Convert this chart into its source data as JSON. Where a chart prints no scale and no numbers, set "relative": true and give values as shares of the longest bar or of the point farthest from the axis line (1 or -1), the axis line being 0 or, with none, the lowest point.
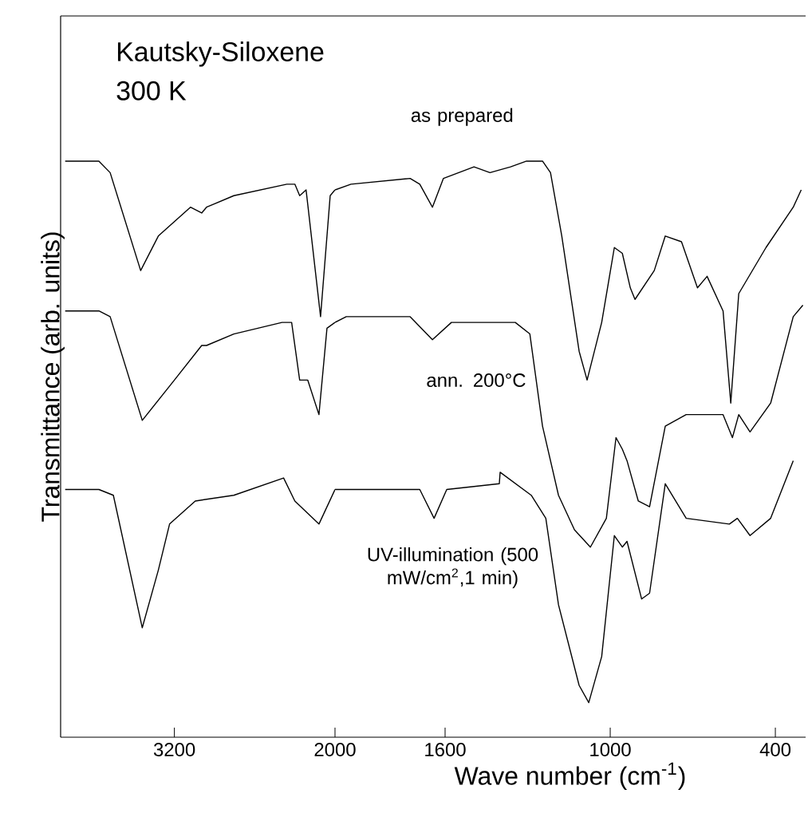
{
  "chart_data": [
    {
      "type": "line",
      "title": "Kautsky-Siloxene",
      "subtitle": "300 K",
      "ylabel": "Transmittance (arb. units)",
      "relative": true,
      "line_style": "solid",
      "tick_labels": "x",
      "xlim": [
        4050,
        2000
      ],
      "xticks": [
        3200,
        2000
      ],
      "series": [
        {
          "color": "#000000",
          "x": [
            4016,
            3764,
            3680,
            3452,
            3320,
            3080,
            2996,
            2960,
            2756,
            2360,
            2300,
            2264,
            2216,
            2108,
            2036,
            2000
          ],
          "values": [
            1.0,
            1.0,
            0.98,
            0.81,
            0.87,
            0.92,
            0.91,
            0.92,
            0.94,
            0.96,
            0.96,
            0.94,
            0.95,
            0.73,
            0.94,
            0.95
          ]
        },
        {
          "color": "#000000",
          "x": [
            4016,
            3764,
            3680,
            3440,
            3200,
            2996,
            2960,
            2756,
            2396,
            2324,
            2264,
            2204,
            2120,
            2060,
            2000
          ],
          "values": [
            0.74,
            0.74,
            0.73,
            0.55,
            0.62,
            0.68,
            0.68,
            0.7,
            0.72,
            0.72,
            0.62,
            0.62,
            0.56,
            0.71,
            0.72
          ]
        },
        {
          "color": "#000000",
          "x": [
            4016,
            3764,
            3656,
            3440,
            3320,
            3236,
            3044,
            2756,
            2384,
            2300,
            2120,
            2000
          ],
          "values": [
            0.43,
            0.43,
            0.42,
            0.19,
            0.29,
            0.37,
            0.41,
            0.42,
            0.45,
            0.41,
            0.37,
            0.43
          ]
        }
      ]
    },
    {
      "type": "line",
      "xlabel": "Wave number (cm$^{-1}$)",
      "relative": true,
      "line_style": "solid",
      "tick_labels": "x",
      "xlim": [
        2000,
        290
      ],
      "xticks": [
        1600,
        1000,
        400
      ],
      "series": [
        {
          "name": "as prepared",
          "color": "#000000",
          "x": [
            2000,
            1942,
            1727,
            1692,
            1646,
            1606,
            1495,
            1437,
            1362,
            1304,
            1246,
            1217,
            1176,
            1113,
            1084,
            1031,
            985,
            956,
            927,
            910,
            840,
            800,
            741,
            683,
            648,
            590,
            562,
            533,
            434,
            335,
            306
          ],
          "values": [
            0.95,
            0.96,
            0.97,
            0.96,
            0.92,
            0.97,
            0.99,
            0.98,
            0.99,
            1.0,
            1.0,
            0.98,
            0.87,
            0.67,
            0.62,
            0.72,
            0.85,
            0.84,
            0.78,
            0.76,
            0.81,
            0.87,
            0.86,
            0.78,
            0.8,
            0.74,
            0.58,
            0.77,
            0.85,
            0.92,
            0.95
          ]
        },
        {
          "name": "ann. 200°C",
          "color": "#000000",
          "x": [
            2000,
            1959,
            1727,
            1646,
            1577,
            1437,
            1345,
            1292,
            1246,
            1188,
            1130,
            1072,
            1014,
            979,
            956,
            939,
            898,
            857,
            800,
            724,
            590,
            556,
            533,
            492,
            417,
            335,
            300
          ],
          "values": [
            0.72,
            0.73,
            0.73,
            0.69,
            0.72,
            0.72,
            0.72,
            0.7,
            0.54,
            0.42,
            0.36,
            0.33,
            0.38,
            0.52,
            0.5,
            0.48,
            0.41,
            0.4,
            0.54,
            0.56,
            0.56,
            0.52,
            0.56,
            0.53,
            0.58,
            0.73,
            0.75
          ]
        },
        {
          "name": "UV-illumination (500 mW/cm$^{2}$,1 min)",
          "color": "#000000",
          "x": [
            2000,
            1692,
            1640,
            1594,
            1403,
            1400,
            1287,
            1234,
            1188,
            1113,
            1078,
            1031,
            985,
            956,
            939,
            886,
            857,
            800,
            724,
            567,
            538,
            492,
            417,
            335
          ],
          "values": [
            0.43,
            0.43,
            0.38,
            0.43,
            0.44,
            0.46,
            0.42,
            0.38,
            0.23,
            0.09,
            0.06,
            0.14,
            0.35,
            0.33,
            0.34,
            0.24,
            0.25,
            0.44,
            0.38,
            0.37,
            0.38,
            0.35,
            0.38,
            0.48
          ]
        }
      ]
    }
  ]
}
